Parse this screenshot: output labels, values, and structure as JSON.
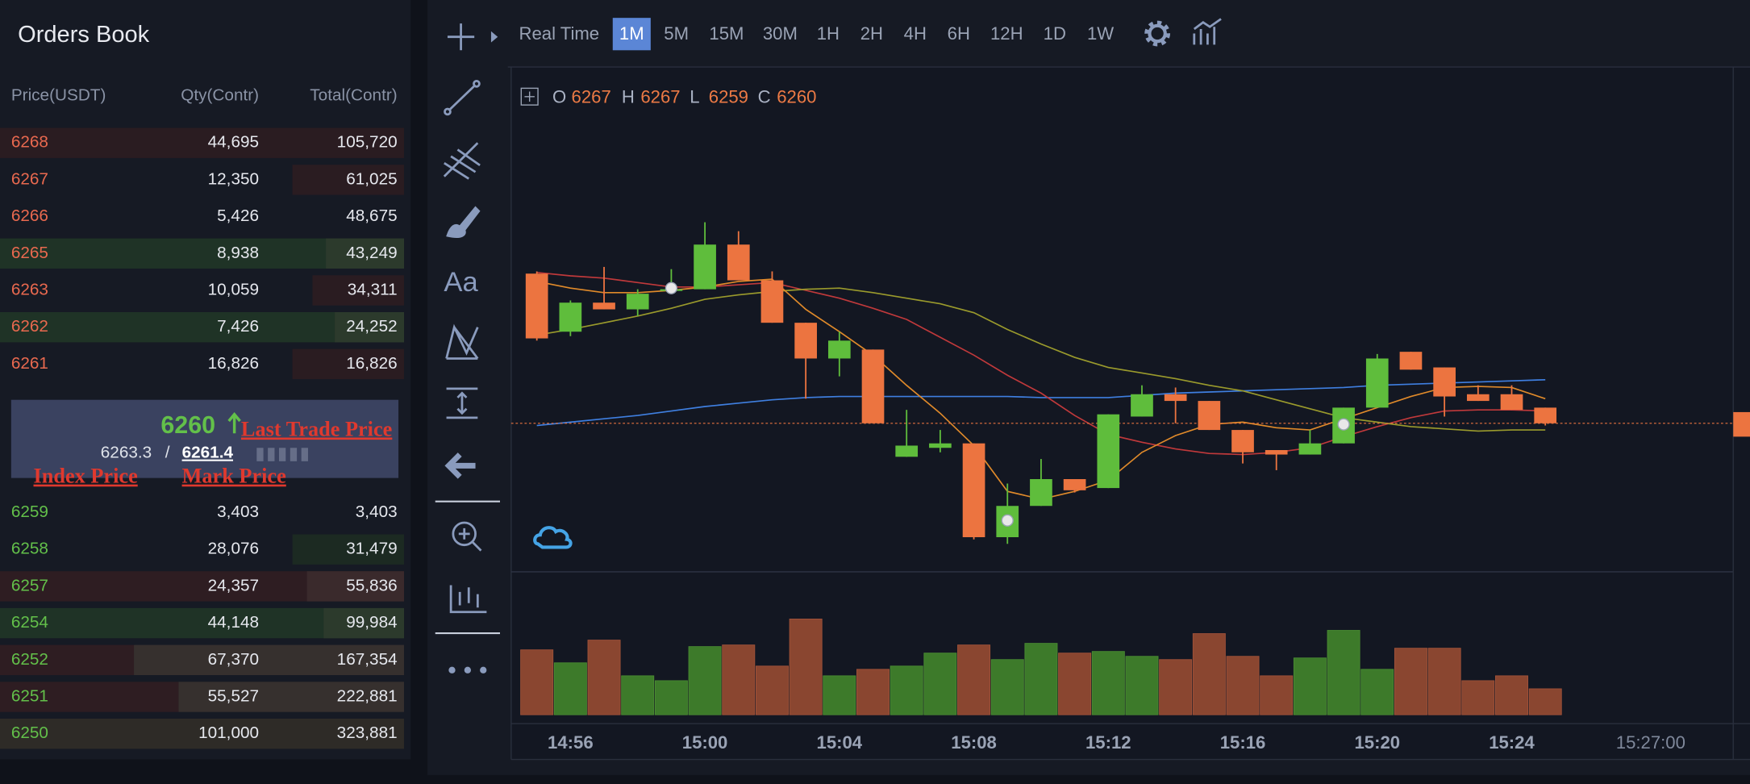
{
  "orderbook": {
    "title": "Orders Book",
    "headers": [
      "Price(USDT)",
      "Qty(Contr)",
      "Total(Contr)"
    ],
    "asks": [
      [
        6268,
        "44,695",
        "105,720"
      ],
      [
        6267,
        "12,350",
        "61,025"
      ],
      [
        6266,
        "5,426",
        "48,675"
      ],
      [
        6265,
        "8,938",
        "43,249"
      ],
      [
        6263,
        "10,059",
        "34,311"
      ],
      [
        6262,
        "7,426",
        "24,252"
      ],
      [
        6261,
        "16,826",
        "16,826"
      ]
    ],
    "last_price": 6260,
    "index_price": 6263.3,
    "separator": "/",
    "mark_price": 6261.4,
    "bids": [
      [
        6259,
        "3,403",
        "3,403"
      ],
      [
        6258,
        "28,076",
        "31,479"
      ],
      [
        6257,
        "24,357",
        "55,836"
      ],
      [
        6254,
        "44,148",
        "99,984"
      ],
      [
        6252,
        "67,370",
        "167,354"
      ],
      [
        6251,
        "55,527",
        "222,881"
      ],
      [
        6250,
        "101,000",
        "323,881"
      ]
    ],
    "annotations": {
      "last_trade": "Last Trade Price",
      "index": "Index Price",
      "mark": "Mark Price"
    }
  },
  "toolbar": {
    "mode": "Real Time",
    "intervals": [
      "1M",
      "5M",
      "15M",
      "30M",
      "1H",
      "2H",
      "4H",
      "6H",
      "12H",
      "1D",
      "1W"
    ],
    "selected": "1M",
    "text_tool": "Aa"
  },
  "chart_data": {
    "type": "candlestick",
    "ohlc_labels": [
      "O",
      "H",
      "L",
      "C"
    ],
    "categories": [
      null,
      "14:56",
      null,
      null,
      null,
      "15:00",
      null,
      null,
      null,
      "15:04",
      null,
      null,
      null,
      "15:08",
      null,
      null,
      null,
      "15:12",
      null,
      null,
      null,
      "15:16",
      null,
      null,
      null,
      "15:20",
      null,
      null,
      null,
      "15:24",
      null
    ],
    "open": [
      6327,
      6301,
      6314,
      6311,
      6320,
      6320,
      6340,
      6324,
      6305,
      6289,
      6293,
      6245,
      6249,
      6251,
      6209,
      6223,
      6235,
      6231,
      6263,
      6273,
      6270,
      6257,
      6248,
      6246,
      6251,
      6267,
      6292,
      6285,
      6273,
      6273,
      6267
    ],
    "high": [
      6328,
      6315,
      6330,
      6320,
      6329,
      6350,
      6346,
      6328,
      6305,
      6301,
      6293,
      6266,
      6257,
      6251,
      6233,
      6244,
      6235,
      6264,
      6277,
      6276,
      6270,
      6257,
      6248,
      6257,
      6267,
      6291,
      6292,
      6285,
      6277,
      6277,
      6267
    ],
    "low": [
      6297,
      6299,
      6311,
      6308,
      6318,
      6320,
      6324,
      6305,
      6271,
      6281,
      6260,
      6245,
      6247,
      6208,
      6206,
      6223,
      6229,
      6231,
      6263,
      6260,
      6257,
      6242,
      6239,
      6246,
      6251,
      6267,
      6284,
      6263,
      6270,
      6266,
      6259
    ],
    "close": [
      6298,
      6314,
      6311,
      6318,
      6320,
      6340,
      6324,
      6305,
      6289,
      6297,
      6260,
      6250,
      6251,
      6209,
      6223,
      6235,
      6230,
      6264,
      6273,
      6270,
      6257,
      6247,
      6246,
      6251,
      6267,
      6289,
      6284,
      6272,
      6270,
      6266,
      6260
    ],
    "volume": [
      4.0,
      3.2,
      4.6,
      2.4,
      2.1,
      4.2,
      4.3,
      3.0,
      5.9,
      2.4,
      2.8,
      3.0,
      3.8,
      4.3,
      3.4,
      4.4,
      3.8,
      3.9,
      3.6,
      3.4,
      5.0,
      3.6,
      2.4,
      3.5,
      5.2,
      2.8,
      4.1,
      4.1,
      2.1,
      2.4,
      1.6
    ],
    "ylim": [
      6193.5,
      6419.5
    ],
    "volume_ylim": [
      0,
      8.6
    ],
    "up_color": "#5fbd3c",
    "down_color": "#ec7440",
    "moving_averages": [
      {
        "color": "#3f7fe0",
        "values": [
          6259,
          6260.5,
          6262,
          6263.5,
          6265.5,
          6267.5,
          6269,
          6270.5,
          6271.5,
          6272,
          6272,
          6272,
          6272,
          6272,
          6272,
          6271.5,
          6271.5,
          6271.5,
          6272.5,
          6273.5,
          6274,
          6274.5,
          6275,
          6275.5,
          6276,
          6277,
          6277.5,
          6278,
          6278.5,
          6279,
          6279.5
        ]
      },
      {
        "color": "#c0393b",
        "values": [
          6327.5,
          6326,
          6325,
          6323,
          6321,
          6321,
          6322,
          6323,
          6319.5,
          6316,
          6311.5,
          6306.5,
          6298.5,
          6290.5,
          6281.5,
          6273.5,
          6263.5,
          6255,
          6251.5,
          6248.5,
          6246.5,
          6246,
          6247,
          6249,
          6254,
          6258.5,
          6262.5,
          6265.5,
          6266,
          6266,
          6265.5
        ]
      },
      {
        "color": "#9a9a2c",
        "values": [
          6299.5,
          6302,
          6305,
          6308,
          6311.5,
          6315.5,
          6317.5,
          6319,
          6320,
          6320.5,
          6318.5,
          6316,
          6313.5,
          6309.5,
          6302,
          6295.5,
          6289.5,
          6285,
          6282.5,
          6280,
          6277,
          6274.5,
          6270.5,
          6266.5,
          6262.5,
          6260.5,
          6258.5,
          6257.5,
          6256.5,
          6257,
          6257
        ]
      },
      {
        "color": "#e08a2a",
        "values": [
          6323.5,
          6320.5,
          6318.5,
          6318.5,
          6319.5,
          6321,
          6323.5,
          6324.5,
          6311,
          6301,
          6290.5,
          6277,
          6264.5,
          6250,
          6229.5,
          6226,
          6229.5,
          6234.5,
          6247,
          6254.5,
          6259.5,
          6260.5,
          6258,
          6257,
          6262,
          6267,
          6272,
          6276,
          6276.5,
          6276,
          6271
        ]
      }
    ],
    "crosshair_time": "15:27:00"
  }
}
